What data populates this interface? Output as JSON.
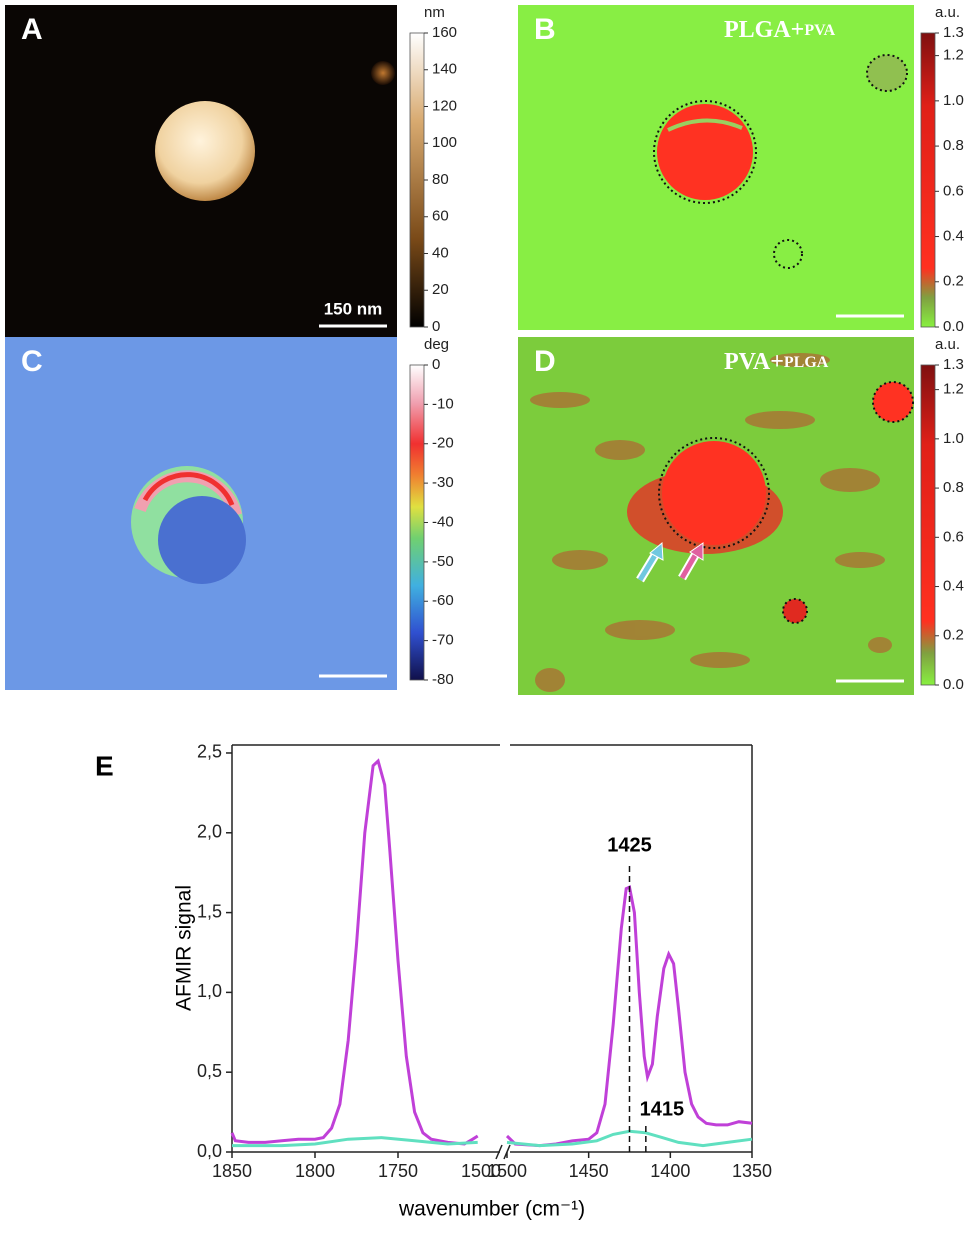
{
  "panels": [
    {
      "label": "A",
      "unit": "nm",
      "range": [
        0,
        160
      ],
      "ticks": [
        0,
        20,
        40,
        60,
        80,
        100,
        120,
        140,
        160
      ],
      "scale_bar": "150 nm"
    },
    {
      "label": "B",
      "unit": "a.u.",
      "range": [
        0,
        1.3
      ],
      "ticks": [
        {
          "value": 0,
          "label": "0.0"
        },
        0.2,
        0.4,
        0.6,
        0.8,
        {
          "value": 1,
          "label": "1.0"
        },
        1.2,
        1.3
      ],
      "overlay": [
        "PLGA+",
        "PVA"
      ]
    },
    {
      "label": "C",
      "unit": "deg",
      "range": [
        -80,
        0
      ],
      "ticks": [
        0,
        -10,
        -20,
        -30,
        -40,
        -50,
        -60,
        -70,
        -80
      ]
    },
    {
      "label": "D",
      "unit": "a.u.",
      "range": [
        0,
        1.3
      ],
      "ticks": [
        {
          "value": 0,
          "label": "0.0"
        },
        0.2,
        0.4,
        0.6,
        0.8,
        {
          "value": 1,
          "label": "1.0"
        },
        1.2,
        1.3
      ],
      "overlay": [
        "PVA+",
        "PLGA"
      ]
    }
  ],
  "chart_data": {
    "type": "line",
    "label": "E",
    "ylabel": "AFMIR signal",
    "xlabel": "wavenumber (cm⁻¹)",
    "ylim": [
      0,
      2.55
    ],
    "yticks": [
      {
        "value": 0,
        "label": "0,0"
      },
      {
        "value": 0.5,
        "label": "0,5"
      },
      {
        "value": 1,
        "label": "1,0"
      },
      {
        "value": 1.5,
        "label": "1,5"
      },
      {
        "value": 2,
        "label": "2,0"
      },
      {
        "value": 2.5,
        "label": "2,5"
      }
    ],
    "x_segments": [
      {
        "xlim": [
          1850,
          1700
        ],
        "xticks": [
          1850,
          1800,
          1750
        ],
        "break_label": "1500"
      },
      {
        "xlim": [
          1500,
          1350
        ],
        "xticks": [
          1500,
          1450,
          1400,
          1350
        ]
      }
    ],
    "series": [
      {
        "color": "#c040d8",
        "segments": [
          {
            "x": [
              1850,
              1848,
              1840,
              1830,
              1820,
              1810,
              1800,
              1795,
              1790,
              1785,
              1780,
              1775,
              1770,
              1765,
              1762,
              1758,
              1755,
              1750,
              1745,
              1740,
              1735,
              1730,
              1720,
              1710,
              1705,
              1702
            ],
            "values": [
              0.12,
              0.07,
              0.06,
              0.06,
              0.07,
              0.08,
              0.08,
              0.09,
              0.15,
              0.3,
              0.7,
              1.3,
              2.0,
              2.42,
              2.45,
              2.3,
              1.9,
              1.2,
              0.6,
              0.25,
              0.12,
              0.08,
              0.06,
              0.05,
              0.08,
              0.1
            ]
          },
          {
            "x": [
              1500,
              1495,
              1480,
              1470,
              1460,
              1450,
              1445,
              1440,
              1435,
              1430,
              1427,
              1425,
              1422,
              1419,
              1416,
              1414,
              1411,
              1408,
              1404,
              1401,
              1398,
              1395,
              1391,
              1387,
              1383,
              1378,
              1372,
              1365,
              1358,
              1350
            ],
            "values": [
              0.1,
              0.05,
              0.04,
              0.05,
              0.07,
              0.08,
              0.12,
              0.3,
              0.8,
              1.4,
              1.65,
              1.66,
              1.5,
              1.0,
              0.6,
              0.47,
              0.55,
              0.85,
              1.15,
              1.24,
              1.18,
              0.9,
              0.5,
              0.3,
              0.22,
              0.18,
              0.17,
              0.17,
              0.19,
              0.18
            ]
          }
        ]
      },
      {
        "color": "#60e0c0",
        "segments": [
          {
            "x": [
              1850,
              1820,
              1800,
              1780,
              1760,
              1740,
              1720,
              1702
            ],
            "values": [
              0.04,
              0.04,
              0.05,
              0.08,
              0.09,
              0.07,
              0.05,
              0.06
            ]
          },
          {
            "x": [
              1500,
              1480,
              1460,
              1445,
              1435,
              1425,
              1415,
              1405,
              1395,
              1380,
              1365,
              1350
            ],
            "values": [
              0.06,
              0.04,
              0.05,
              0.07,
              0.11,
              0.13,
              0.12,
              0.09,
              0.06,
              0.04,
              0.06,
              0.08
            ]
          }
        ]
      }
    ],
    "annotations": [
      {
        "x": 1425
      },
      {
        "x": 1415
      }
    ]
  }
}
